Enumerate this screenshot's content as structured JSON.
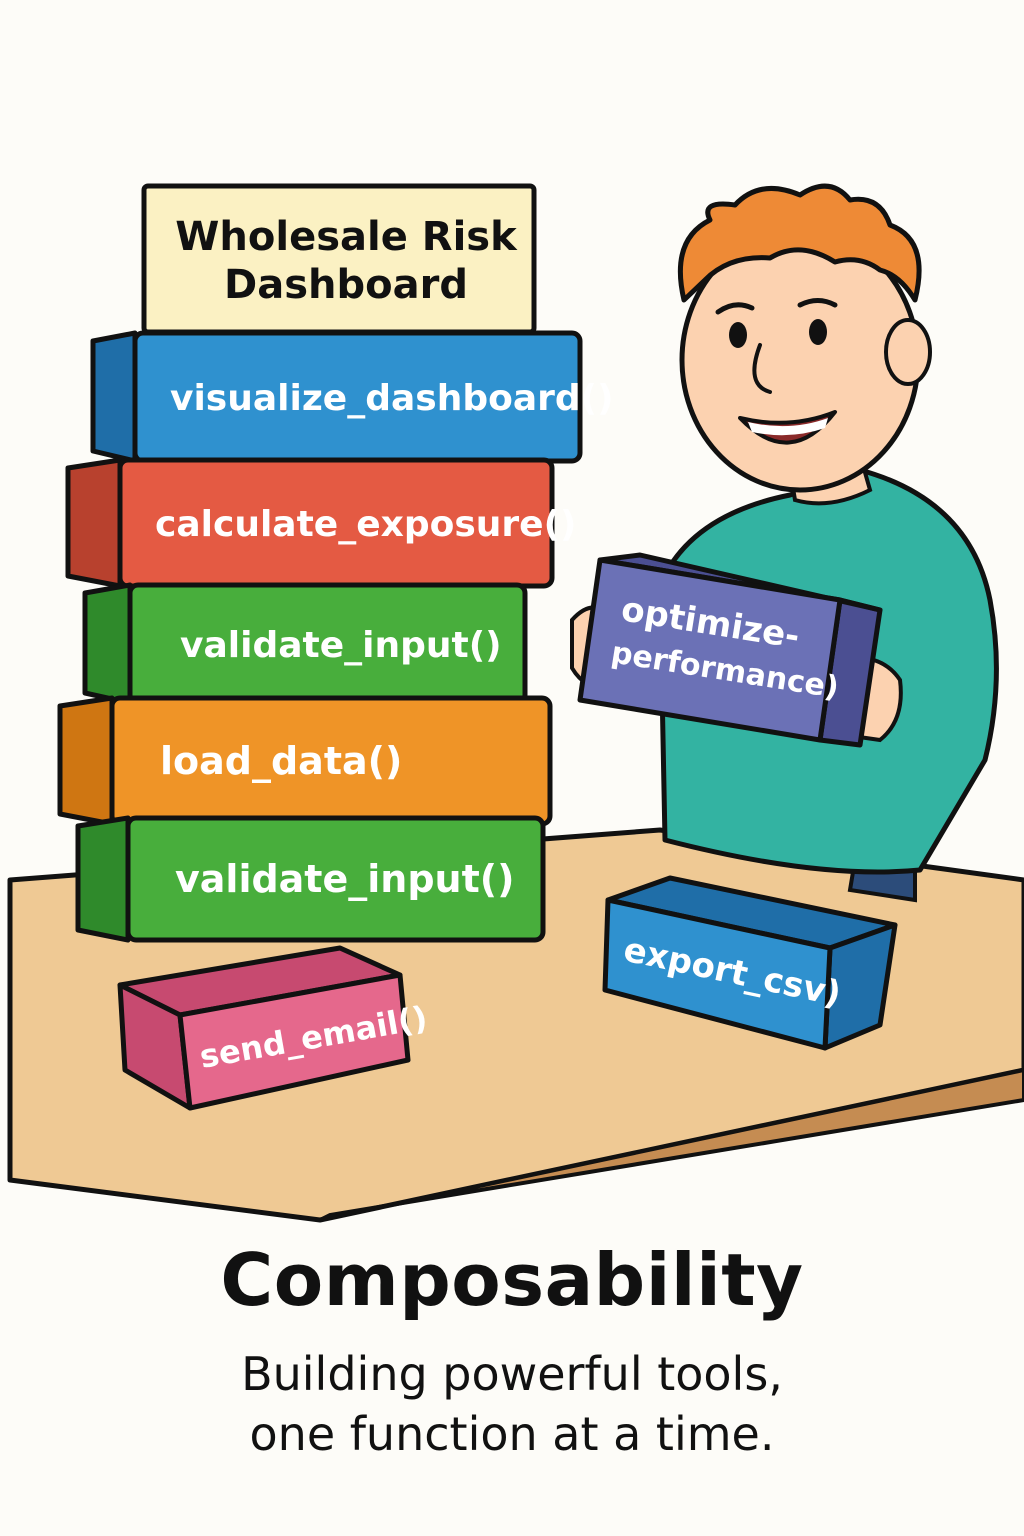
{
  "colors": {
    "outline": "#111111",
    "table_top": "#efc994",
    "table_edge": "#c58c52",
    "sign_bg": "#fbf1c3",
    "blue": "#2f91cf",
    "red": "#e45a43",
    "green": "#48ae3c",
    "orange": "#ef9427",
    "pink": "#e5688c",
    "purple": "#6b71b6",
    "shirt": "#33b3a2",
    "hair": "#ee8a36",
    "skin": "#fcd2b0"
  },
  "sign": {
    "line1": "Wholesale Risk",
    "line2": "Dashboard"
  },
  "stack": [
    {
      "label": "visualize_dashboard()",
      "color": "blue"
    },
    {
      "label": "calculate_exposure()",
      "color": "red"
    },
    {
      "label": "validate_input()",
      "color": "green"
    },
    {
      "label": "load_data()",
      "color": "orange"
    },
    {
      "label": "validate_input()",
      "color": "green"
    }
  ],
  "loose_blocks": {
    "send_email": "send_email()",
    "export_csv": "export_csv)"
  },
  "held_block": {
    "line1": "optimize-",
    "line2": "performance)"
  },
  "caption": {
    "title": "Composability",
    "subtitle_line1": "Building powerful tools,",
    "subtitle_line2": "one function at a time."
  }
}
